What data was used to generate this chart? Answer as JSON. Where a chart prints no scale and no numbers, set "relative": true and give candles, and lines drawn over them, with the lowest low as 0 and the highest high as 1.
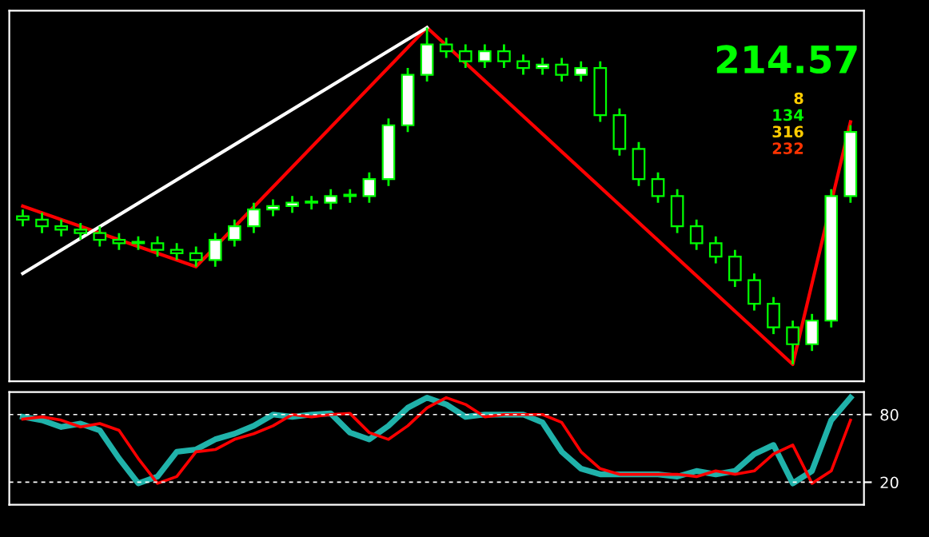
{
  "chart_data": [
    {
      "type": "candlestick",
      "relative": true,
      "annotations": [
        "214.57",
        "8",
        "134",
        "316",
        "232"
      ],
      "categories": [
        null,
        null,
        null,
        null,
        null,
        null,
        null,
        null,
        null,
        null,
        null,
        null,
        null,
        null,
        null,
        null,
        null,
        null,
        null,
        null,
        null,
        null,
        null,
        null,
        null,
        null,
        null,
        null,
        null,
        null,
        null,
        null,
        null,
        null,
        null,
        null,
        null,
        null,
        null,
        null,
        null,
        null,
        null,
        null
      ],
      "ohlc": [
        [
          0.44,
          0.46,
          0.41,
          0.43
        ],
        [
          0.43,
          0.45,
          0.39,
          0.41
        ],
        [
          0.41,
          0.43,
          0.38,
          0.4
        ],
        [
          0.4,
          0.42,
          0.37,
          0.39
        ],
        [
          0.39,
          0.41,
          0.35,
          0.37
        ],
        [
          0.37,
          0.39,
          0.34,
          0.36
        ],
        [
          0.36,
          0.38,
          0.34,
          0.36
        ],
        [
          0.36,
          0.38,
          0.32,
          0.34
        ],
        [
          0.34,
          0.36,
          0.31,
          0.33
        ],
        [
          0.33,
          0.35,
          0.29,
          0.31
        ],
        [
          0.31,
          0.39,
          0.29,
          0.37
        ],
        [
          0.37,
          0.43,
          0.35,
          0.41
        ],
        [
          0.41,
          0.48,
          0.39,
          0.46
        ],
        [
          0.46,
          0.49,
          0.44,
          0.47
        ],
        [
          0.47,
          0.5,
          0.45,
          0.48
        ],
        [
          0.48,
          0.5,
          0.46,
          0.48
        ],
        [
          0.48,
          0.52,
          0.46,
          0.5
        ],
        [
          0.5,
          0.52,
          0.48,
          0.5
        ],
        [
          0.5,
          0.57,
          0.48,
          0.55
        ],
        [
          0.55,
          0.73,
          0.53,
          0.71
        ],
        [
          0.71,
          0.88,
          0.69,
          0.86
        ],
        [
          0.86,
          1.0,
          0.84,
          0.95
        ],
        [
          0.95,
          0.97,
          0.91,
          0.93
        ],
        [
          0.93,
          0.95,
          0.88,
          0.9
        ],
        [
          0.9,
          0.95,
          0.88,
          0.93
        ],
        [
          0.93,
          0.95,
          0.88,
          0.9
        ],
        [
          0.9,
          0.92,
          0.86,
          0.88
        ],
        [
          0.88,
          0.91,
          0.86,
          0.89
        ],
        [
          0.89,
          0.91,
          0.84,
          0.86
        ],
        [
          0.86,
          0.9,
          0.84,
          0.88
        ],
        [
          0.88,
          0.9,
          0.72,
          0.74
        ],
        [
          0.74,
          0.76,
          0.62,
          0.64
        ],
        [
          0.64,
          0.66,
          0.53,
          0.55
        ],
        [
          0.55,
          0.57,
          0.48,
          0.5
        ],
        [
          0.5,
          0.52,
          0.39,
          0.41
        ],
        [
          0.41,
          0.43,
          0.34,
          0.36
        ],
        [
          0.36,
          0.38,
          0.3,
          0.32
        ],
        [
          0.32,
          0.34,
          0.23,
          0.25
        ],
        [
          0.25,
          0.27,
          0.16,
          0.18
        ],
        [
          0.18,
          0.2,
          0.09,
          0.11
        ],
        [
          0.11,
          0.13,
          0.0,
          0.06
        ],
        [
          0.06,
          0.15,
          0.04,
          0.13
        ],
        [
          0.13,
          0.52,
          0.11,
          0.5
        ],
        [
          0.5,
          0.71,
          0.48,
          0.69
        ]
      ],
      "series": [
        {
          "type": "line",
          "color": "#ff0000",
          "values": [
            0.47,
            null,
            null,
            null,
            null,
            null,
            null,
            null,
            null,
            0.29,
            null,
            null,
            null,
            null,
            null,
            null,
            null,
            null,
            null,
            null,
            null,
            1.0,
            null,
            null,
            null,
            null,
            null,
            null,
            null,
            null,
            null,
            null,
            null,
            null,
            null,
            null,
            null,
            null,
            null,
            null,
            0.0,
            null,
            null,
            0.72
          ]
        },
        {
          "type": "line",
          "color": "#ffffff",
          "values": [
            0.27,
            null,
            null,
            null,
            null,
            null,
            null,
            null,
            null,
            null,
            null,
            null,
            null,
            null,
            null,
            null,
            null,
            null,
            null,
            null,
            null,
            1.0,
            null,
            null,
            null,
            null,
            null,
            null,
            null,
            null,
            null,
            null,
            null,
            null,
            null,
            null,
            null,
            null,
            null,
            null,
            null,
            null,
            null,
            null
          ]
        }
      ]
    },
    {
      "type": "line",
      "ylim": [
        0,
        100
      ],
      "yticks": [
        80,
        20
      ],
      "categories": [
        null,
        null,
        null,
        null,
        null,
        null,
        null,
        null,
        null,
        null,
        null,
        null,
        null,
        null,
        null,
        null,
        null,
        null,
        null,
        null,
        null,
        null,
        null,
        null,
        null,
        null,
        null,
        null,
        null,
        null,
        null,
        null,
        null,
        null,
        null,
        null,
        null,
        null,
        null,
        null,
        null,
        null,
        null,
        null
      ],
      "series": [
        {
          "color": "#20b2aa",
          "values": [
            78,
            75,
            69,
            72,
            66,
            41,
            19,
            25,
            47,
            49,
            58,
            63,
            70,
            80,
            78,
            80,
            81,
            64,
            58,
            70,
            86,
            95,
            89,
            78,
            80,
            80,
            80,
            73,
            47,
            32,
            27,
            27,
            27,
            27,
            25,
            30,
            27,
            30,
            45,
            53,
            19,
            30,
            75,
            95
          ]
        },
        {
          "color": "#ff0000",
          "values": [
            76,
            78,
            75,
            69,
            72,
            66,
            41,
            19,
            25,
            47,
            49,
            58,
            63,
            70,
            80,
            78,
            80,
            81,
            64,
            58,
            70,
            86,
            95,
            89,
            78,
            80,
            80,
            80,
            73,
            47,
            32,
            27,
            27,
            27,
            27,
            25,
            30,
            27,
            30,
            45,
            53,
            19,
            30,
            75
          ]
        }
      ]
    }
  ]
}
